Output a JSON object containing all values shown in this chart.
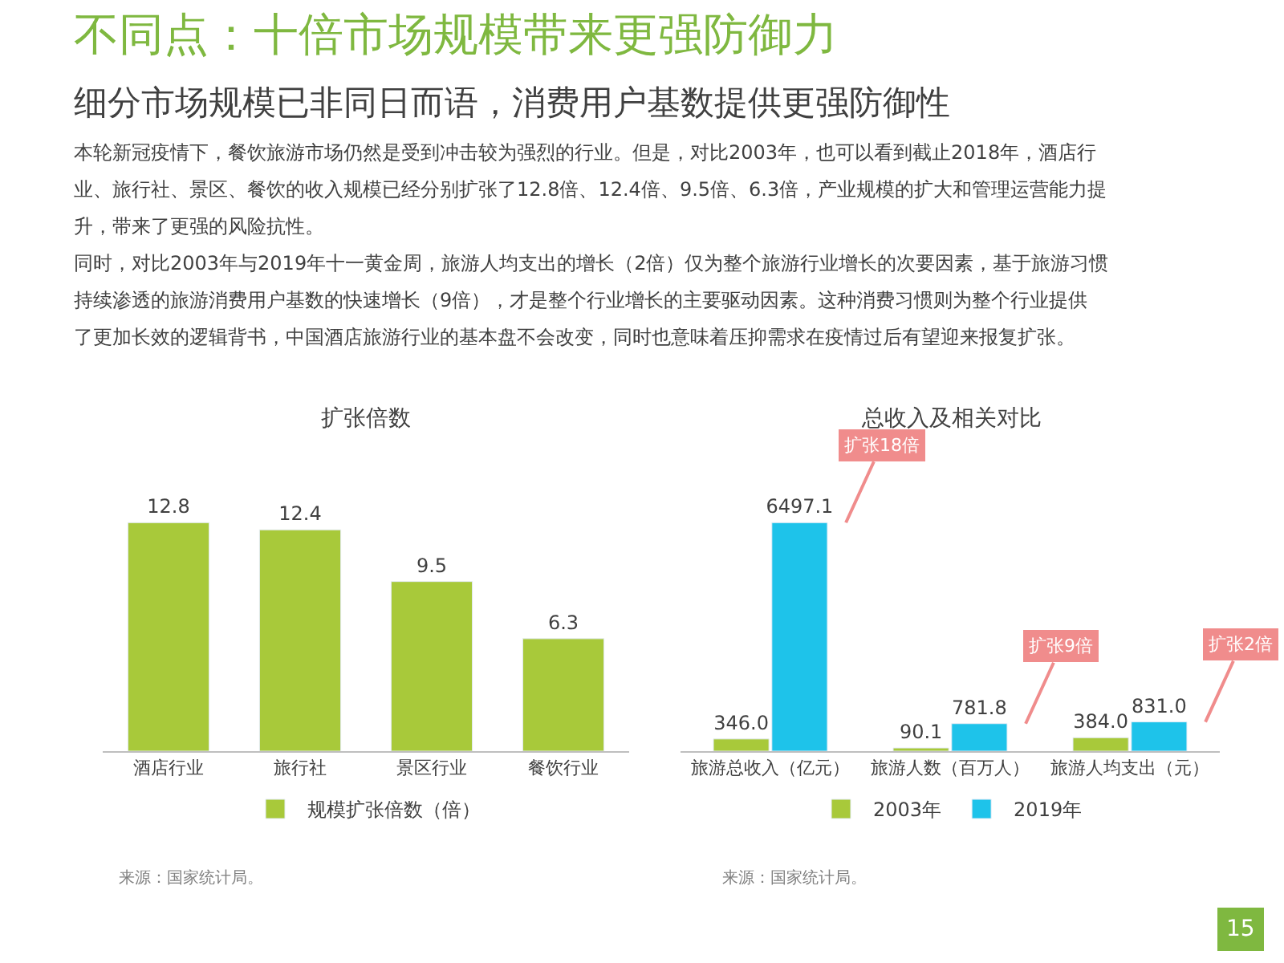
{
  "chart_data": [
    {
      "type": "other",
      "title": "不同点：十倍市场规模带来更强防御力",
      "subtitle": "细分市场规模已非同日而语，消费用户基数提供更强防御性",
      "annotations": [
        "本轮新冠疫情下，餐饮旅游市场仍然是受到冲击较为强烈的行业。但是，对比2003年，也可以看到截止2018年，酒店行",
        "业、旅行社、景区、餐饮的收入规模已经分别扩张了12.8倍、12.4倍、9.5倍、6.3倍，产业规模的扩大和管理运营能力提",
        "升，带来了更强的风险抗性。",
        "同时，对比2003年与2019年十一黄金周，旅游人均支出的增长（2倍）仅为整个旅游行业增长的次要因素，基于旅游习惯",
        "持续渗透的旅游消费用户基数的快速增长（9倍），才是整个行业增长的主要驱动因素。这种消费习惯则为整个行业提供",
        "了更加长效的逻辑背书，中国酒店旅游行业的基本盘不会改变，同时也意味着压抑需求在疫情过后有望迎来报复扩张。",
        "15"
      ]
    },
    {
      "type": "bar",
      "title": "扩张倍数",
      "categories": [
        "酒店行业",
        "旅行社",
        "景区行业",
        "餐饮行业"
      ],
      "series": [
        {
          "name": "规模扩张倍数（倍）",
          "color": "#a8c93a",
          "values": [
            12.8,
            12.4,
            9.5,
            6.3
          ]
        }
      ],
      "data_labels": true,
      "legend": "bottom",
      "annotations": [
        "来源：国家统计局。"
      ]
    },
    {
      "type": "bar",
      "title": "总收入及相关对比",
      "categories": [
        "旅游总收入（亿元）",
        "旅游人数（百万人）",
        "旅游人均支出（元）"
      ],
      "series": [
        {
          "name": "2003年",
          "color": "#a8c93a",
          "values": [
            346.0,
            90.1,
            384.0
          ],
          "value_labels": [
            "346.0",
            "90.1",
            "384.0"
          ]
        },
        {
          "name": "2019年",
          "color": "#1ec3ea",
          "values": [
            6497.1,
            781.8,
            831.0
          ],
          "value_labels": [
            "6497.1",
            "781.8",
            "831.0"
          ]
        }
      ],
      "legend": "bottom",
      "annotations": [
        "扩张18倍",
        "扩张9倍",
        "扩张2倍",
        "来源：国家统计局。"
      ]
    }
  ]
}
